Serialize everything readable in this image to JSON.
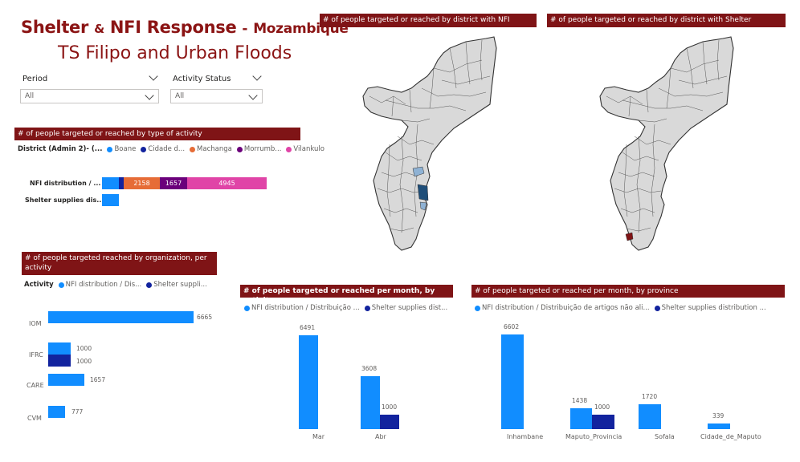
{
  "header": {
    "title_main": "Shelter",
    "title_amp": "&",
    "title_nfi": "NFI Response",
    "title_sep": "-",
    "title_country": "Mozambique",
    "subtitle": "TS Filipo and Urban Floods"
  },
  "filters": {
    "period_label": "Period",
    "period_value": "All",
    "status_label": "Activity Status",
    "status_value": "All"
  },
  "panels": {
    "by_activity_type": "# of people targeted or reached by type of activity",
    "map_nfi": "# of people targeted or reached by district with NFI",
    "map_shelter": "# of people targeted or reached by district with Shelter",
    "by_org": "# of people targeted reached by organization, per activity",
    "by_month": "# of people targeted or reached per month, by activity",
    "by_province": "# of people targeted or reached per month, by province"
  },
  "colors": {
    "boane": "#118dff",
    "cidade": "#12239e",
    "machanga": "#e66c37",
    "morrumbala": "#6b007b",
    "vilankulo": "#e044a7",
    "nfi": "#118dff",
    "shelter": "#12239e",
    "banner": "#7f1416"
  },
  "chart_data": [
    {
      "type": "bar",
      "orientation": "horizontal-stacked",
      "legend_title": "District (Admin 2)- (...",
      "legend": [
        "Boane",
        "Cidade d...",
        "Machanga",
        "Morrumb...",
        "Vilankulo"
      ],
      "categories": [
        "NFI distribution / ...",
        "Shelter supplies dis..."
      ],
      "data_labels": [
        "2158",
        "1657",
        "4945"
      ],
      "series": [
        {
          "name": "Boane",
          "values": [
            1000,
            1000
          ]
        },
        {
          "name": "Cidade d...",
          "values": [
            339,
            0
          ]
        },
        {
          "name": "Machanga",
          "values": [
            2158,
            0
          ]
        },
        {
          "name": "Morrumb...",
          "values": [
            1657,
            0
          ]
        },
        {
          "name": "Vilankulo",
          "values": [
            4945,
            0
          ]
        }
      ]
    },
    {
      "type": "bar",
      "orientation": "horizontal-clustered",
      "legend_title": "Activity",
      "legend": [
        "NFI distribution / Dis...",
        "Shelter suppli..."
      ],
      "categories": [
        "IOM",
        "IFRC",
        "CARE",
        "CVM"
      ],
      "data_labels": [
        "6665",
        "1000",
        "1000",
        "1657",
        "777"
      ],
      "series": [
        {
          "name": "NFI distribution / Dis...",
          "values": [
            6665,
            1000,
            1657,
            777
          ]
        },
        {
          "name": "Shelter suppli...",
          "values": [
            0,
            1000,
            0,
            0
          ]
        }
      ]
    },
    {
      "type": "bar",
      "legend": [
        "NFI distribution / Distribuição ...",
        "Shelter supplies dist..."
      ],
      "categories": [
        "Mar",
        "Abr"
      ],
      "data_labels": [
        "6491",
        "3608",
        "1000"
      ],
      "series": [
        {
          "name": "NFI distribution / Distribuição ...",
          "values": [
            6491,
            3608
          ]
        },
        {
          "name": "Shelter supplies dist...",
          "values": [
            0,
            1000
          ]
        }
      ]
    },
    {
      "type": "bar",
      "legend": [
        "NFI distribution / Distribuição de artigos não ali...",
        "Shelter supplies distribution ..."
      ],
      "categories": [
        "Inhambane",
        "Maputo_Provincia",
        "Sofala",
        "Cidade_de_Maputo"
      ],
      "data_labels": [
        "6602",
        "1438",
        "1000",
        "1720",
        "339"
      ],
      "series": [
        {
          "name": "NFI distribution / Distribuição de artigos não ali...",
          "values": [
            6602,
            1438,
            1720,
            339
          ]
        },
        {
          "name": "Shelter supplies distribution ...",
          "values": [
            0,
            1000,
            0,
            0
          ]
        }
      ]
    }
  ]
}
